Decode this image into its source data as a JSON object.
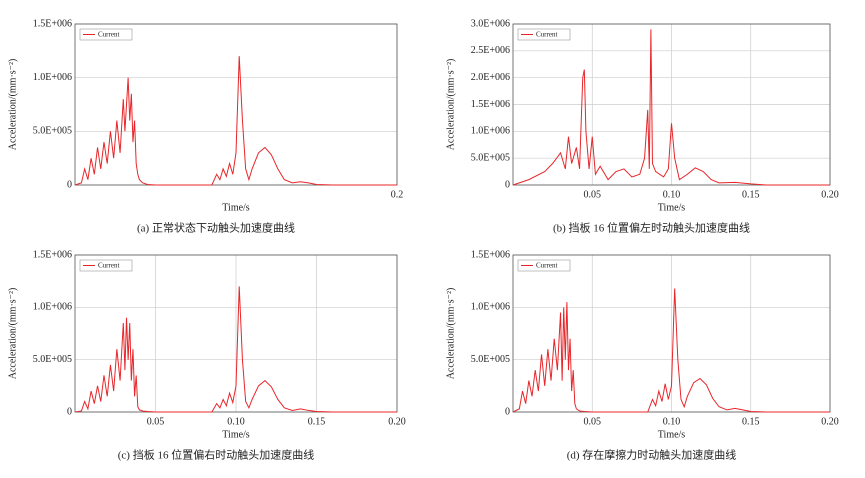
{
  "chart_data": [
    {
      "type": "line",
      "caption": "(a) 正常状态下动触头加速度曲线",
      "xlabel": "Time/s",
      "ylabel": "Acceleration/(mm·s⁻²)",
      "xlim": [
        0,
        0.2
      ],
      "xticks": [
        0.2
      ],
      "ylim": [
        0,
        1500000
      ],
      "yticks": [
        0,
        {
          "value": 500000,
          "label": "5.0E+005"
        },
        {
          "value": 1000000,
          "label": "1.0E+006"
        },
        {
          "value": 1500000,
          "label": "1.5E+006"
        }
      ],
      "grid": true,
      "legend": "upper left",
      "x": [
        0,
        0.004,
        0.006,
        0.008,
        0.01,
        0.012,
        0.014,
        0.016,
        0.018,
        0.02,
        0.022,
        0.024,
        0.026,
        0.028,
        0.03,
        0.031,
        0.032,
        0.033,
        0.034,
        0.035,
        0.036,
        0.037,
        0.038,
        0.039,
        0.04,
        0.042,
        0.045,
        0.05,
        0.06,
        0.07,
        0.085,
        0.088,
        0.09,
        0.092,
        0.094,
        0.096,
        0.098,
        0.1,
        0.102,
        0.104,
        0.106,
        0.108,
        0.11,
        0.114,
        0.118,
        0.122,
        0.126,
        0.13,
        0.135,
        0.14,
        0.145,
        0.15,
        0.16,
        0.2
      ],
      "series": [
        {
          "name": "Current",
          "color": "#e8262a",
          "values": [
            0,
            20000,
            150000,
            50000,
            250000,
            100000,
            350000,
            150000,
            400000,
            200000,
            500000,
            250000,
            600000,
            300000,
            800000,
            500000,
            750000,
            1000000,
            600000,
            850000,
            400000,
            600000,
            200000,
            100000,
            50000,
            20000,
            5000,
            0,
            0,
            0,
            0,
            100000,
            50000,
            150000,
            80000,
            200000,
            100000,
            300000,
            1200000,
            600000,
            150000,
            50000,
            150000,
            300000,
            350000,
            280000,
            150000,
            50000,
            20000,
            30000,
            20000,
            5000,
            0,
            0
          ]
        }
      ]
    },
    {
      "type": "line",
      "caption": "(b) 挡板 16 位置偏左时动触头加速度曲线",
      "xlabel": "Time/s",
      "ylabel": "Acceleration/(mm·s⁻²)",
      "xlim": [
        0,
        0.2
      ],
      "xticks": [
        0.05,
        {
          "value": 0.1,
          "label": "0.10"
        },
        0.15,
        {
          "value": 0.2,
          "label": "0.20"
        }
      ],
      "ylim": [
        0,
        3000000
      ],
      "yticks": [
        0,
        {
          "value": 500000,
          "label": "5.0E+005"
        },
        {
          "value": 1000000,
          "label": "1.0E+006"
        },
        {
          "value": 1500000,
          "label": "1.5E+006"
        },
        {
          "value": 2000000,
          "label": "2.0E+006"
        },
        {
          "value": 2500000,
          "label": "2.5E+006"
        },
        {
          "value": 3000000,
          "label": "3.0E+006"
        }
      ],
      "grid": true,
      "legend": "upper left",
      "x": [
        0,
        0.01,
        0.02,
        0.025,
        0.03,
        0.033,
        0.035,
        0.037,
        0.04,
        0.042,
        0.044,
        0.045,
        0.046,
        0.048,
        0.05,
        0.052,
        0.055,
        0.06,
        0.065,
        0.07,
        0.075,
        0.08,
        0.083,
        0.085,
        0.086,
        0.087,
        0.088,
        0.09,
        0.095,
        0.098,
        0.1,
        0.102,
        0.105,
        0.11,
        0.115,
        0.12,
        0.125,
        0.13,
        0.14,
        0.15,
        0.16,
        0.2
      ],
      "series": [
        {
          "name": "Current",
          "color": "#e8262a",
          "values": [
            0,
            100000,
            250000,
            400000,
            600000,
            300000,
            900000,
            400000,
            700000,
            300000,
            2000000,
            2150000,
            1000000,
            300000,
            900000,
            200000,
            350000,
            100000,
            250000,
            300000,
            150000,
            200000,
            500000,
            1400000,
            300000,
            2900000,
            400000,
            250000,
            150000,
            300000,
            1150000,
            500000,
            100000,
            200000,
            320000,
            250000,
            100000,
            40000,
            50000,
            20000,
            0,
            0
          ]
        }
      ]
    },
    {
      "type": "line",
      "caption": "(c) 挡板 16 位置偏右时动触头加速度曲线",
      "xlabel": "Time/s",
      "ylabel": "Acceleration/(mm·s⁻²)",
      "xlim": [
        0,
        0.2
      ],
      "xticks": [
        0.05,
        {
          "value": 0.1,
          "label": "0.10"
        },
        0.15,
        {
          "value": 0.2,
          "label": "0.20"
        }
      ],
      "ylim": [
        0,
        1500000
      ],
      "yticks": [
        0,
        {
          "value": 500000,
          "label": "5.0E+005"
        },
        {
          "value": 1000000,
          "label": "1.0E+006"
        },
        {
          "value": 1500000,
          "label": "1.5E+006"
        }
      ],
      "grid": true,
      "legend": "upper left",
      "x": [
        0,
        0.004,
        0.006,
        0.008,
        0.01,
        0.012,
        0.014,
        0.016,
        0.018,
        0.02,
        0.022,
        0.024,
        0.026,
        0.028,
        0.03,
        0.031,
        0.032,
        0.033,
        0.034,
        0.035,
        0.036,
        0.037,
        0.038,
        0.039,
        0.04,
        0.042,
        0.045,
        0.05,
        0.06,
        0.07,
        0.085,
        0.088,
        0.09,
        0.092,
        0.094,
        0.096,
        0.098,
        0.1,
        0.102,
        0.104,
        0.106,
        0.108,
        0.11,
        0.114,
        0.118,
        0.122,
        0.126,
        0.13,
        0.135,
        0.14,
        0.145,
        0.15,
        0.16,
        0.2
      ],
      "series": [
        {
          "name": "Current",
          "color": "#e8262a",
          "values": [
            0,
            10000,
            100000,
            30000,
            200000,
            80000,
            250000,
            100000,
            350000,
            150000,
            450000,
            200000,
            600000,
            300000,
            850000,
            400000,
            900000,
            500000,
            850000,
            300000,
            600000,
            150000,
            350000,
            50000,
            20000,
            10000,
            5000,
            0,
            0,
            0,
            0,
            80000,
            40000,
            120000,
            60000,
            180000,
            90000,
            250000,
            1200000,
            500000,
            100000,
            40000,
            120000,
            250000,
            300000,
            240000,
            120000,
            40000,
            15000,
            30000,
            15000,
            5000,
            0,
            0
          ]
        }
      ]
    },
    {
      "type": "line",
      "caption": "(d) 存在摩擦力时动触头加速度曲线",
      "xlabel": "Time/s",
      "ylabel": "Acceleration/(mm·s⁻²)",
      "xlim": [
        0,
        0.2
      ],
      "xticks": [
        0.05,
        {
          "value": 0.1,
          "label": "0.10"
        },
        0.15,
        {
          "value": 0.2,
          "label": "0.20"
        }
      ],
      "ylim": [
        0,
        1500000
      ],
      "yticks": [
        0,
        {
          "value": 500000,
          "label": "5.0E+005"
        },
        {
          "value": 1000000,
          "label": "1.0E+006"
        },
        {
          "value": 1500000,
          "label": "1.5E+006"
        }
      ],
      "grid": true,
      "legend": "upper left",
      "x": [
        0,
        0.004,
        0.006,
        0.008,
        0.01,
        0.012,
        0.014,
        0.016,
        0.018,
        0.02,
        0.022,
        0.024,
        0.026,
        0.028,
        0.03,
        0.031,
        0.032,
        0.033,
        0.034,
        0.035,
        0.036,
        0.037,
        0.038,
        0.039,
        0.04,
        0.042,
        0.045,
        0.05,
        0.06,
        0.07,
        0.085,
        0.088,
        0.09,
        0.092,
        0.094,
        0.096,
        0.098,
        0.1,
        0.102,
        0.104,
        0.106,
        0.108,
        0.11,
        0.114,
        0.118,
        0.122,
        0.126,
        0.13,
        0.135,
        0.14,
        0.145,
        0.15,
        0.16,
        0.2
      ],
      "series": [
        {
          "name": "Current",
          "color": "#e8262a",
          "values": [
            0,
            30000,
            200000,
            80000,
            300000,
            150000,
            400000,
            200000,
            550000,
            250000,
            600000,
            300000,
            700000,
            400000,
            950000,
            300000,
            1000000,
            500000,
            1050000,
            400000,
            700000,
            200000,
            400000,
            80000,
            30000,
            10000,
            5000,
            0,
            0,
            0,
            0,
            120000,
            60000,
            200000,
            100000,
            270000,
            120000,
            250000,
            1180000,
            500000,
            120000,
            50000,
            150000,
            280000,
            320000,
            260000,
            130000,
            50000,
            20000,
            35000,
            20000,
            5000,
            0,
            0
          ]
        }
      ]
    }
  ]
}
